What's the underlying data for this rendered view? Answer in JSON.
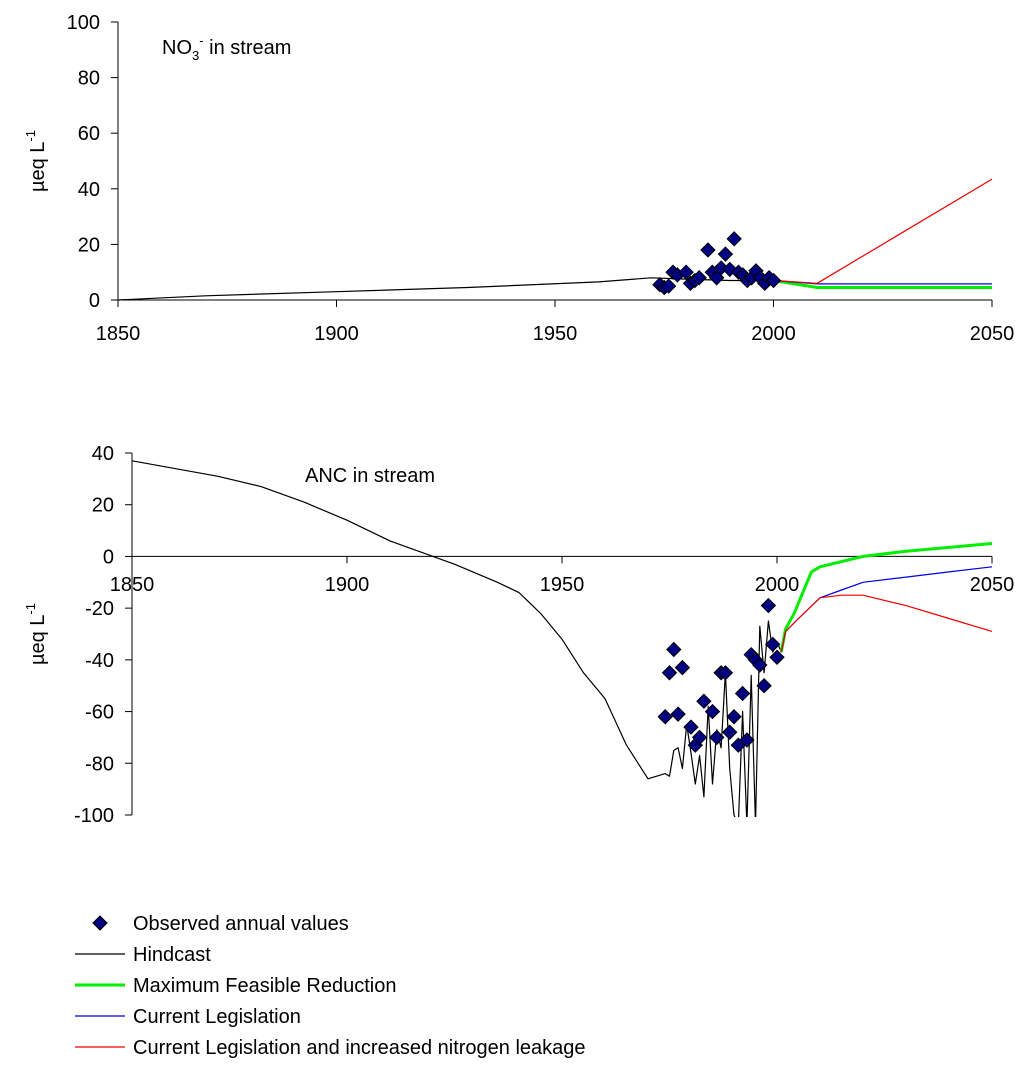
{
  "chart_data": [
    {
      "type": "line",
      "annotation": {
        "main": "NO",
        "sub": "3",
        "sup": "-",
        "rest": " in stream"
      },
      "ylabel": {
        "main": "µeq L",
        "sup": "-1"
      },
      "xlim": [
        1850,
        2050
      ],
      "ylim": [
        0,
        100
      ],
      "xticks": [
        1850,
        1900,
        1950,
        2000,
        2050
      ],
      "yticks": [
        0,
        20,
        40,
        60,
        80,
        100
      ],
      "series": [
        {
          "name": "Hindcast",
          "color": "#000000",
          "width": 1.2,
          "points": [
            [
              1850,
              0
            ],
            [
              1870,
              1.5
            ],
            [
              1900,
              3
            ],
            [
              1930,
              4.5
            ],
            [
              1960,
              6.5
            ],
            [
              1972,
              8
            ],
            [
              1980,
              7.5
            ],
            [
              1990,
              7
            ],
            [
              2000,
              7
            ],
            [
              2002,
              6.8
            ]
          ]
        },
        {
          "name": "Maximum Feasible Reduction",
          "color": "#00ee00",
          "width": 3,
          "points": [
            [
              2000,
              7
            ],
            [
              2010,
              4.5
            ],
            [
              2050,
              4.5
            ]
          ]
        },
        {
          "name": "Current Legislation",
          "color": "#0000dd",
          "width": 1.2,
          "points": [
            [
              2000,
              7
            ],
            [
              2010,
              5.8
            ],
            [
              2050,
              5.8
            ]
          ]
        },
        {
          "name": "Current Legislation and increased nitrogen leakage",
          "color": "#ee0000",
          "width": 1.2,
          "points": [
            [
              2000,
              7
            ],
            [
              2010,
              6
            ],
            [
              2050,
              43.5
            ]
          ]
        }
      ],
      "observed": {
        "name": "Observed annual values",
        "points": [
          [
            1974,
            5.5
          ],
          [
            1975,
            4.5
          ],
          [
            1976,
            5
          ],
          [
            1977,
            10
          ],
          [
            1978,
            9
          ],
          [
            1980,
            10
          ],
          [
            1981,
            6
          ],
          [
            1982,
            7
          ],
          [
            1983,
            8
          ],
          [
            1985,
            18
          ],
          [
            1986,
            10
          ],
          [
            1987,
            8
          ],
          [
            1988,
            11.5
          ],
          [
            1989,
            16.5
          ],
          [
            1990,
            11
          ],
          [
            1991,
            22
          ],
          [
            1992,
            10
          ],
          [
            1993,
            9
          ],
          [
            1994,
            7
          ],
          [
            1995,
            8
          ],
          [
            1996,
            10.5
          ],
          [
            1997,
            8
          ],
          [
            1998,
            6
          ],
          [
            1999,
            8
          ],
          [
            2000,
            7
          ]
        ]
      }
    },
    {
      "type": "line",
      "annotation": {
        "main": "ANC in stream"
      },
      "ylabel": {
        "main": "µeq L",
        "sup": "-1"
      },
      "xlim": [
        1850,
        2050
      ],
      "ylim": [
        -100,
        40
      ],
      "xticks": [
        1850,
        1900,
        1950,
        2000,
        2050
      ],
      "yticks": [
        -100,
        -80,
        -60,
        -40,
        -20,
        0,
        20,
        40
      ],
      "series": [
        {
          "name": "Hindcast",
          "color": "#000000",
          "width": 1.2,
          "points": [
            [
              1850,
              37
            ],
            [
              1870,
              31
            ],
            [
              1880,
              27
            ],
            [
              1890,
              21
            ],
            [
              1900,
              14
            ],
            [
              1910,
              6
            ],
            [
              1915,
              3
            ],
            [
              1925,
              -3
            ],
            [
              1935,
              -10
            ],
            [
              1940,
              -14
            ],
            [
              1945,
              -22
            ],
            [
              1950,
              -32
            ],
            [
              1955,
              -45
            ],
            [
              1960,
              -55
            ],
            [
              1965,
              -73
            ],
            [
              1970,
              -86
            ],
            [
              1972,
              -85
            ],
            [
              1974,
              -84
            ],
            [
              1975,
              -85
            ],
            [
              1976,
              -75
            ],
            [
              1977,
              -74
            ],
            [
              1978,
              -82
            ],
            [
              1979,
              -65
            ],
            [
              1980,
              -76
            ],
            [
              1981,
              -88
            ],
            [
              1982,
              -77
            ],
            [
              1983,
              -93
            ],
            [
              1984,
              -58
            ],
            [
              1985,
              -88
            ],
            [
              1986,
              -67
            ],
            [
              1987,
              -74
            ],
            [
              1988,
              -45
            ],
            [
              1989,
              -82
            ],
            [
              1990,
              -100
            ],
            [
              1991,
              -104
            ],
            [
              1992,
              -60
            ],
            [
              1993,
              -104
            ],
            [
              1994,
              -46
            ],
            [
              1995,
              -104
            ],
            [
              1996,
              -27
            ],
            [
              1997,
              -45
            ],
            [
              1998,
              -25
            ],
            [
              1999,
              -37
            ],
            [
              2000,
              -33
            ],
            [
              2001,
              -37
            ]
          ]
        },
        {
          "name": "Maximum Feasible Reduction",
          "color": "#00ee00",
          "width": 3,
          "points": [
            [
              2001,
              -37
            ],
            [
              2002,
              -28
            ],
            [
              2004,
              -22
            ],
            [
              2006,
              -14
            ],
            [
              2008,
              -6
            ],
            [
              2010,
              -4
            ],
            [
              2015,
              -2
            ],
            [
              2020,
              0
            ],
            [
              2030,
              2
            ],
            [
              2040,
              3.5
            ],
            [
              2050,
              5
            ]
          ]
        },
        {
          "name": "Current Legislation",
          "color": "#0000dd",
          "width": 1.2,
          "points": [
            [
              2001,
              -37
            ],
            [
              2002,
              -29
            ],
            [
              2005,
              -24
            ],
            [
              2010,
              -16
            ],
            [
              2015,
              -13
            ],
            [
              2020,
              -10
            ],
            [
              2030,
              -8
            ],
            [
              2040,
              -6
            ],
            [
              2050,
              -4
            ]
          ]
        },
        {
          "name": "Current Legislation and increased nitrogen leakage",
          "color": "#ee0000",
          "width": 1.2,
          "points": [
            [
              2001,
              -37
            ],
            [
              2002,
              -29
            ],
            [
              2005,
              -24
            ],
            [
              2010,
              -16
            ],
            [
              2015,
              -15
            ],
            [
              2020,
              -15
            ],
            [
              2030,
              -19
            ],
            [
              2040,
              -24
            ],
            [
              2050,
              -29
            ]
          ]
        }
      ],
      "observed": {
        "name": "Observed annual values",
        "points": [
          [
            1974,
            -62
          ],
          [
            1975,
            -45
          ],
          [
            1976,
            -36
          ],
          [
            1977,
            -61
          ],
          [
            1978,
            -43
          ],
          [
            1980,
            -66
          ],
          [
            1981,
            -73
          ],
          [
            1982,
            -70
          ],
          [
            1983,
            -56
          ],
          [
            1985,
            -60
          ],
          [
            1986,
            -70
          ],
          [
            1987,
            -45
          ],
          [
            1988,
            -45
          ],
          [
            1989,
            -68
          ],
          [
            1990,
            -62
          ],
          [
            1991,
            -73
          ],
          [
            1992,
            -53
          ],
          [
            1993,
            -71
          ],
          [
            1994,
            -38
          ],
          [
            1995,
            -40
          ],
          [
            1996,
            -42
          ],
          [
            1997,
            -50
          ],
          [
            1998,
            -19
          ],
          [
            1999,
            -34
          ],
          [
            2000,
            -39
          ]
        ]
      }
    }
  ],
  "legend": [
    {
      "kind": "marker",
      "label": "Observed annual values",
      "color": "#000080"
    },
    {
      "kind": "line",
      "label": "Hindcast",
      "color": "#000000",
      "width": 1.2
    },
    {
      "kind": "line",
      "label": "Maximum Feasible Reduction",
      "color": "#00ee00",
      "width": 3
    },
    {
      "kind": "line",
      "label": "Current Legislation",
      "color": "#0000dd",
      "width": 1.2
    },
    {
      "kind": "line",
      "label": "Current Legislation and increased nitrogen leakage",
      "color": "#ee0000",
      "width": 1.2
    }
  ]
}
